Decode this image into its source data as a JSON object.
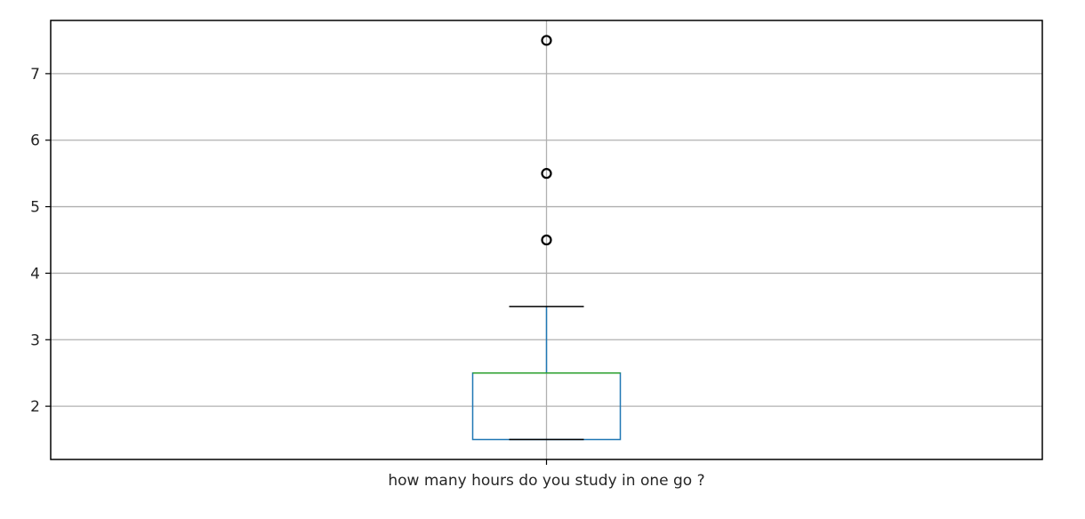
{
  "chart_data": {
    "type": "box",
    "categories": [
      "how many hours do you study in one go ?"
    ],
    "boxes": [
      {
        "category": "how many hours do you study in one go ?",
        "whisker_low": 1.5,
        "q1": 1.5,
        "median": 2.5,
        "q3": 2.5,
        "whisker_high": 3.5,
        "outliers": [
          4.5,
          5.5,
          7.5
        ]
      }
    ],
    "title": "",
    "xlabel": "",
    "ylabel": "",
    "ylim": [
      1.2,
      7.8
    ],
    "yticks": [
      2,
      3,
      4,
      5,
      6,
      7
    ],
    "grid": true,
    "colors": {
      "box": "#1f77b4",
      "median": "#2ca02c",
      "whisker": "#1f77b4",
      "cap": "#000000",
      "outlier": "#000000",
      "grid": "#b0b0b0",
      "frame": "#000000"
    }
  }
}
